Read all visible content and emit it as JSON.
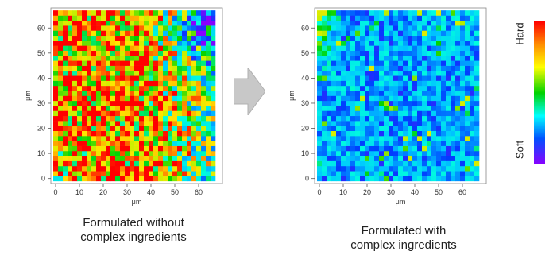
{
  "chart_data": [
    {
      "type": "heatmap",
      "title": "",
      "xlabel": "μm",
      "ylabel": "μm",
      "xlim": [
        -2,
        70
      ],
      "ylim": [
        -2,
        68
      ],
      "xticks": [
        0,
        10,
        20,
        30,
        40,
        50,
        60
      ],
      "yticks": [
        0,
        10,
        20,
        30,
        40,
        50,
        60
      ],
      "grid_size": 34,
      "cell_size_um": 2,
      "value_range": [
        0,
        1
      ],
      "value_meaning": "0 = Soft, 1 = Hard",
      "dominant_pattern": "mostly hard (red/orange) with softer green/blue patches toward the right",
      "caption": [
        "Formulated without",
        "complex ingredients"
      ]
    },
    {
      "type": "heatmap",
      "title": "",
      "xlabel": "μm",
      "ylabel": "μm",
      "xlim": [
        -2,
        70
      ],
      "ylim": [
        -2,
        68
      ],
      "xticks": [
        0,
        10,
        20,
        30,
        40,
        50,
        60
      ],
      "yticks": [
        0,
        10,
        20,
        30,
        40,
        50,
        60
      ],
      "grid_size": 34,
      "cell_size_um": 2,
      "value_range": [
        0,
        1
      ],
      "value_meaning": "0 = Soft, 1 = Hard",
      "dominant_pattern": "mostly soft (blue/cyan) with a few harder spots near the top-left",
      "caption": [
        "Formulated with",
        "complex ingredients"
      ]
    }
  ],
  "colorbar": {
    "top_label": "Hard",
    "bottom_label": "Soft",
    "colors": [
      "#ff0000",
      "#ff8c00",
      "#ffff00",
      "#00d200",
      "#00ffff",
      "#0050ff",
      "#8a00ff"
    ]
  },
  "arrow": {
    "color": "#c8c8c8",
    "icon": "right-arrow"
  }
}
